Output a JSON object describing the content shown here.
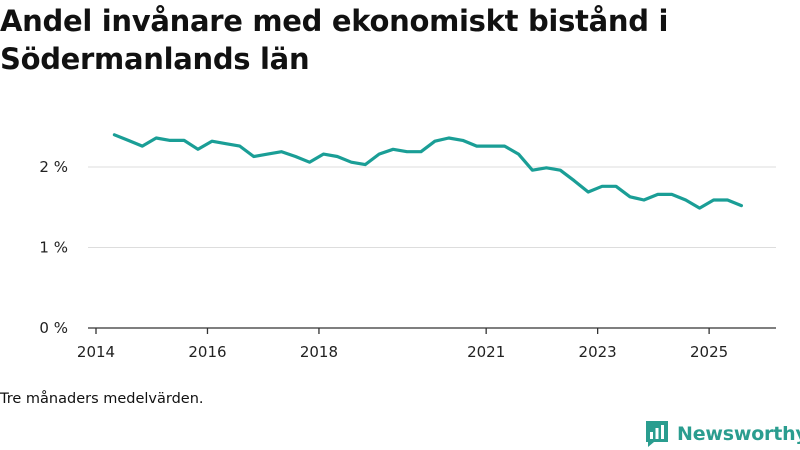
{
  "chart_data": {
    "type": "line",
    "title": "Andel invånare med ekonomiskt bistånd i Södermanlands län",
    "note": "Tre månaders medelvärden.",
    "brand": "Newsworthy",
    "colors": {
      "line": "#1a9e96",
      "grid": "#dddddd",
      "axis": "#333333"
    },
    "xlabel": "",
    "ylabel": "",
    "xlim": [
      2014.0,
      2026.2
    ],
    "ylim": [
      0,
      2.5
    ],
    "x_ticks": [
      {
        "value": 2014,
        "label": "2014"
      },
      {
        "value": 2016,
        "label": "2016"
      },
      {
        "value": 2018,
        "label": "2018"
      },
      {
        "value": 2021,
        "label": "2021"
      },
      {
        "value": 2023,
        "label": "2023"
      },
      {
        "value": 2025,
        "label": "2025"
      }
    ],
    "y_ticks": [
      {
        "value": 0,
        "label": "0 %"
      },
      {
        "value": 1,
        "label": "1 %"
      },
      {
        "value": 2,
        "label": "2 %"
      }
    ],
    "series": [
      {
        "name": "Andel invånare med ekonomiskt bistånd",
        "x": [
          2014.33,
          2014.58,
          2014.83,
          2015.08,
          2015.33,
          2015.58,
          2015.83,
          2016.08,
          2016.33,
          2016.58,
          2016.83,
          2017.08,
          2017.33,
          2017.58,
          2017.83,
          2018.08,
          2018.33,
          2018.58,
          2018.83,
          2019.08,
          2019.33,
          2019.58,
          2019.83,
          2020.08,
          2020.33,
          2020.58,
          2020.83,
          2021.08,
          2021.33,
          2021.58,
          2021.83,
          2022.08,
          2022.33,
          2022.58,
          2022.83,
          2023.08,
          2023.33,
          2023.58,
          2023.83,
          2024.08,
          2024.33,
          2024.58,
          2024.83,
          2025.08,
          2025.33,
          2025.58
        ],
        "values": [
          2.4,
          2.33,
          2.26,
          2.36,
          2.33,
          2.33,
          2.22,
          2.32,
          2.29,
          2.26,
          2.13,
          2.16,
          2.19,
          2.13,
          2.06,
          2.16,
          2.13,
          2.06,
          2.03,
          2.16,
          2.22,
          2.19,
          2.19,
          2.32,
          2.36,
          2.33,
          2.26,
          2.26,
          2.26,
          2.16,
          1.96,
          1.99,
          1.96,
          1.83,
          1.69,
          1.76,
          1.76,
          1.63,
          1.59,
          1.66,
          1.66,
          1.59,
          1.49,
          1.59,
          1.59,
          1.52
        ]
      }
    ]
  }
}
